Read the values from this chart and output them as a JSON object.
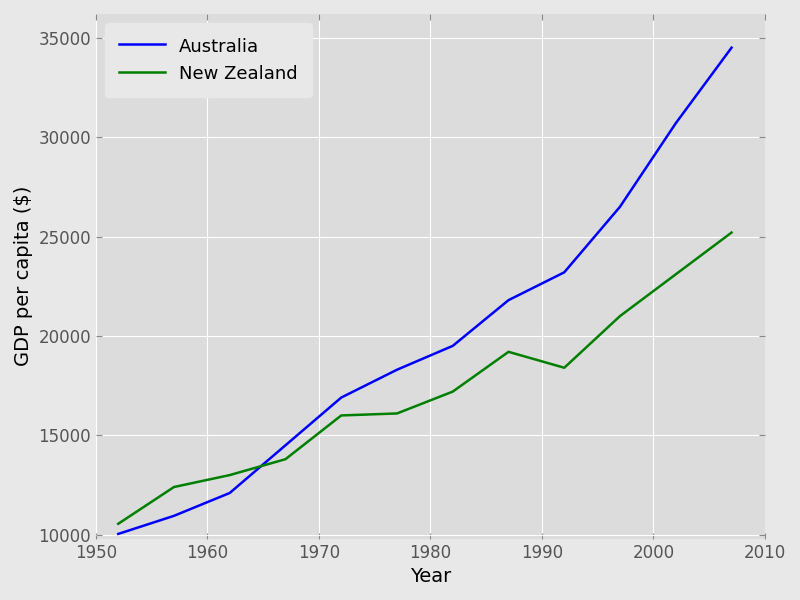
{
  "title": "",
  "xlabel": "Year",
  "ylabel": "GDP per capita ($)",
  "plot_bg_color": "#dcdcdc",
  "fig_bg_color": "#e8e8e8",
  "grid_color": "#ffffff",
  "australia": {
    "label": "Australia",
    "color": "#0000ff",
    "years": [
      1952,
      1957,
      1962,
      1967,
      1972,
      1977,
      1982,
      1987,
      1992,
      1997,
      2002,
      2007
    ],
    "gdp": [
      10040,
      10950,
      12100,
      14500,
      16900,
      18300,
      19500,
      21800,
      23200,
      26500,
      30700,
      34500
    ]
  },
  "new_zealand": {
    "label": "New Zealand",
    "color": "#008000",
    "years": [
      1952,
      1957,
      1962,
      1967,
      1972,
      1977,
      1982,
      1987,
      1992,
      1997,
      2002,
      2007
    ],
    "gdp": [
      10550,
      12400,
      13000,
      13800,
      16000,
      16100,
      17200,
      19200,
      18400,
      21000,
      23100,
      25200
    ]
  },
  "xlim": [
    1950,
    2010
  ],
  "ylim": [
    9800,
    36200
  ],
  "xticks": [
    1950,
    1960,
    1970,
    1980,
    1990,
    2000,
    2010
  ],
  "yticks": [
    10000,
    15000,
    20000,
    25000,
    30000,
    35000
  ],
  "line_width": 1.8,
  "legend_fontsize": 13,
  "axis_label_fontsize": 14,
  "tick_fontsize": 12
}
